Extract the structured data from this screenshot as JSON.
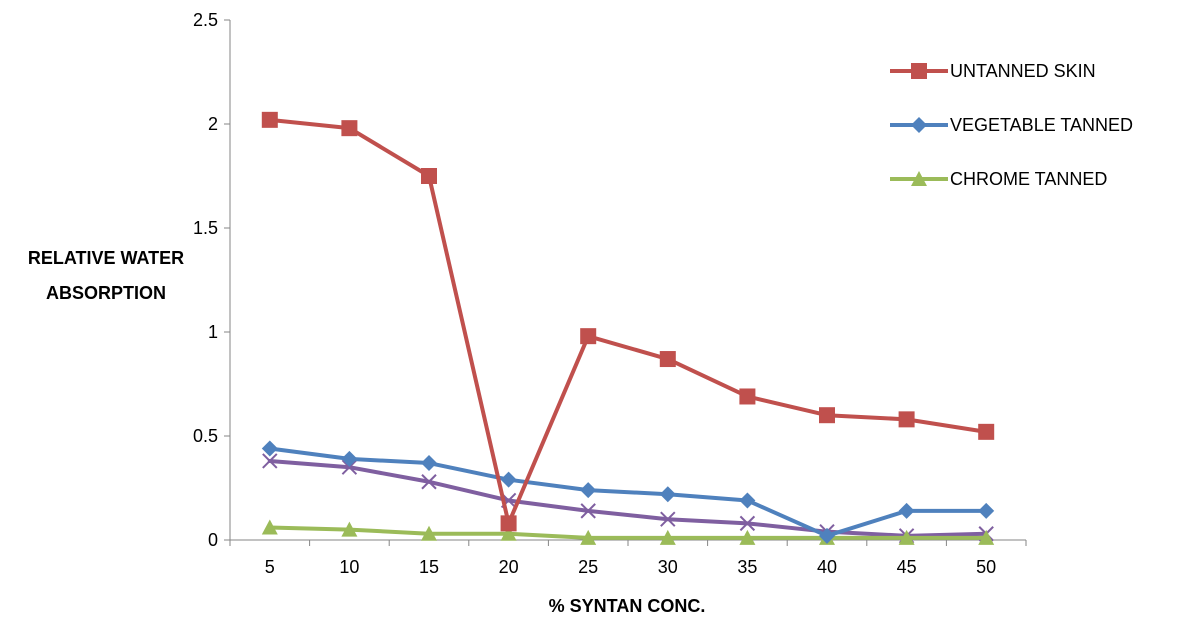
{
  "chart_data": {
    "type": "line",
    "x": [
      5,
      10,
      15,
      20,
      25,
      30,
      35,
      40,
      45,
      50
    ],
    "xticks": [
      "5",
      "10",
      "15",
      "20",
      "25",
      "30",
      "35",
      "40",
      "45",
      "50"
    ],
    "yticks": [
      "0",
      "0.5",
      "1",
      "1.5",
      "2",
      "2.5"
    ],
    "ylim": [
      0,
      2.5
    ],
    "xlabel": "% SYNTAN CONC.",
    "ylabel": [
      "RELATIVE WATER",
      "ABSORPTION"
    ],
    "grid": false,
    "legend_position": "top-right",
    "series": [
      {
        "name": "UNTANNED SKIN",
        "color": "#C0504D",
        "marker": "square",
        "values": [
          2.02,
          1.98,
          1.75,
          0.08,
          0.98,
          0.87,
          0.69,
          0.6,
          0.58,
          0.52
        ]
      },
      {
        "name": "VEGETABLE TANNED",
        "color": "#4F81BD",
        "marker": "diamond",
        "values": [
          0.44,
          0.39,
          0.37,
          0.29,
          0.24,
          0.22,
          0.19,
          0.02,
          0.14,
          0.14
        ]
      },
      {
        "name": "CHROME TANNED",
        "color": "#9BBB59",
        "marker": "triangle",
        "values": [
          0.06,
          0.05,
          0.03,
          0.03,
          0.01,
          0.01,
          0.01,
          0.01,
          0.01,
          0.01
        ]
      },
      {
        "color": "#7F5FA0",
        "marker": "x",
        "legend": false,
        "values": [
          0.38,
          0.35,
          0.28,
          0.19,
          0.14,
          0.1,
          0.08,
          0.04,
          0.02,
          0.03
        ]
      }
    ]
  }
}
